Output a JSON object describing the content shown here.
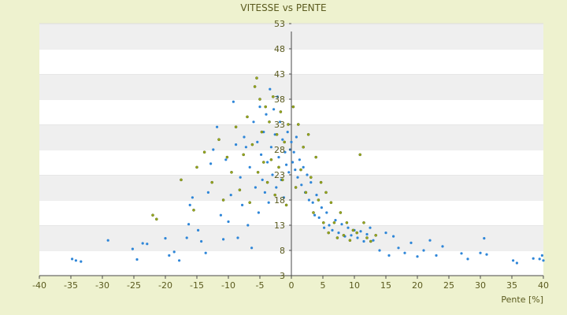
{
  "chart_data": {
    "type": "scatter",
    "title": "VITESSE vs PENTE",
    "xlabel": "Pente [%]",
    "ylabel": "",
    "xlim": [
      -40,
      40
    ],
    "ylim": [
      3,
      53
    ],
    "x_ticks": [
      -40,
      -35,
      -30,
      -25,
      -20,
      -15,
      -10,
      -5,
      0,
      5,
      10,
      15,
      20,
      25,
      30,
      35,
      40
    ],
    "y_ticks": [
      3,
      8,
      13,
      18,
      23,
      28,
      33,
      38,
      43,
      48,
      53
    ],
    "grid": "horizontal bands",
    "legend": "none",
    "series": [
      {
        "color": "#2e86d8",
        "points": [
          [
            -34.8,
            6.3
          ],
          [
            -34.2,
            6.0
          ],
          [
            -33.4,
            5.8
          ],
          [
            -29.1,
            10.0
          ],
          [
            -25.2,
            8.3
          ],
          [
            -24.5,
            6.2
          ],
          [
            -23.6,
            9.4
          ],
          [
            -22.9,
            9.3
          ],
          [
            -20.0,
            10.4
          ],
          [
            -19.4,
            7.0
          ],
          [
            -18.6,
            7.7
          ],
          [
            -17.8,
            6.0
          ],
          [
            -16.6,
            10.5
          ],
          [
            -16.3,
            13.2
          ],
          [
            -16.1,
            17.0
          ],
          [
            -15.7,
            18.5
          ],
          [
            -14.8,
            12.0
          ],
          [
            -14.3,
            9.8
          ],
          [
            -13.6,
            7.5
          ],
          [
            -13.2,
            19.5
          ],
          [
            -12.8,
            25.2
          ],
          [
            -12.4,
            28.0
          ],
          [
            -11.8,
            32.5
          ],
          [
            -11.2,
            15.0
          ],
          [
            -10.8,
            10.2
          ],
          [
            -10.4,
            26.0
          ],
          [
            -10.0,
            13.7
          ],
          [
            -9.6,
            19.0
          ],
          [
            -9.2,
            37.5
          ],
          [
            -8.8,
            29.0
          ],
          [
            -8.5,
            10.5
          ],
          [
            -8.1,
            22.5
          ],
          [
            -7.8,
            17.0
          ],
          [
            -7.5,
            30.5
          ],
          [
            -7.2,
            28.5
          ],
          [
            -6.9,
            13.0
          ],
          [
            -6.6,
            24.5
          ],
          [
            -6.3,
            8.5
          ],
          [
            -6.0,
            33.5
          ],
          [
            -5.7,
            20.5
          ],
          [
            -5.4,
            29.5
          ],
          [
            -5.2,
            15.5
          ],
          [
            -5.0,
            36.5
          ],
          [
            -4.8,
            27.0
          ],
          [
            -4.6,
            22.0
          ],
          [
            -4.4,
            31.5
          ],
          [
            -4.2,
            19.5
          ],
          [
            -4.0,
            35.0
          ],
          [
            -3.8,
            25.5
          ],
          [
            -3.6,
            17.5
          ],
          [
            -3.4,
            40.0
          ],
          [
            -3.2,
            28.5
          ],
          [
            -3.0,
            23.0
          ],
          [
            -2.8,
            36.0
          ],
          [
            -2.6,
            31.0
          ],
          [
            -2.4,
            20.5
          ],
          [
            -2.2,
            38.5
          ],
          [
            -2.0,
            26.5
          ],
          [
            -1.8,
            33.5
          ],
          [
            -1.6,
            22.0
          ],
          [
            -1.4,
            30.0
          ],
          [
            -1.2,
            18.5
          ],
          [
            -1.0,
            27.5
          ],
          [
            -0.8,
            25.0
          ],
          [
            -0.6,
            31.5
          ],
          [
            -0.4,
            23.5
          ],
          [
            -0.2,
            28.0
          ],
          [
            0.0,
            29.5
          ],
          [
            0.2,
            25.5
          ],
          [
            0.4,
            27.5
          ],
          [
            0.6,
            24.0
          ],
          [
            0.8,
            30.5
          ],
          [
            1.0,
            22.5
          ],
          [
            1.3,
            26.0
          ],
          [
            1.6,
            21.0
          ],
          [
            1.9,
            24.5
          ],
          [
            2.2,
            19.5
          ],
          [
            2.5,
            23.0
          ],
          [
            2.8,
            18.0
          ],
          [
            3.1,
            21.5
          ],
          [
            3.4,
            17.5
          ],
          [
            3.7,
            15.0
          ],
          [
            4.0,
            19.0
          ],
          [
            4.4,
            14.5
          ],
          [
            4.8,
            16.5
          ],
          [
            5.2,
            12.5
          ],
          [
            5.6,
            15.5
          ],
          [
            6.0,
            13.0
          ],
          [
            6.5,
            12.0
          ],
          [
            7.0,
            14.0
          ],
          [
            7.5,
            11.5
          ],
          [
            8.0,
            13.2
          ],
          [
            8.5,
            10.8
          ],
          [
            9.0,
            12.5
          ],
          [
            9.5,
            11.0
          ],
          [
            10.0,
            12.0
          ],
          [
            10.5,
            10.5
          ],
          [
            11.0,
            11.8
          ],
          [
            11.5,
            9.8
          ],
          [
            12.0,
            11.2
          ],
          [
            12.5,
            12.5
          ],
          [
            13.0,
            10.0
          ],
          [
            14.0,
            8.0
          ],
          [
            15.0,
            11.5
          ],
          [
            15.5,
            7.0
          ],
          [
            16.2,
            10.8
          ],
          [
            17.0,
            8.5
          ],
          [
            18.0,
            7.5
          ],
          [
            19.0,
            9.5
          ],
          [
            20.0,
            6.8
          ],
          [
            21.0,
            8.0
          ],
          [
            22.0,
            10.0
          ],
          [
            23.0,
            7.0
          ],
          [
            24.0,
            8.8
          ],
          [
            27.0,
            7.4
          ],
          [
            28.0,
            6.3
          ],
          [
            30.0,
            7.5
          ],
          [
            30.6,
            10.4
          ],
          [
            31.0,
            7.2
          ],
          [
            35.2,
            6.0
          ],
          [
            35.8,
            5.5
          ],
          [
            38.4,
            6.4
          ],
          [
            39.4,
            6.3
          ],
          [
            39.8,
            7.0
          ],
          [
            40.0,
            6.0
          ]
        ]
      },
      {
        "color": "#9aaa1c",
        "points": [
          [
            -22.0,
            15.0
          ],
          [
            -21.4,
            14.2
          ],
          [
            -17.5,
            22.0
          ],
          [
            -15.5,
            16.0
          ],
          [
            -15.0,
            24.5
          ],
          [
            -13.8,
            27.5
          ],
          [
            -12.6,
            21.5
          ],
          [
            -11.5,
            30.0
          ],
          [
            -10.8,
            18.0
          ],
          [
            -10.2,
            26.5
          ],
          [
            -9.5,
            23.5
          ],
          [
            -8.8,
            32.5
          ],
          [
            -8.2,
            20.0
          ],
          [
            -7.6,
            27.0
          ],
          [
            -7.0,
            34.5
          ],
          [
            -6.6,
            17.5
          ],
          [
            -6.2,
            29.0
          ],
          [
            -5.8,
            40.5
          ],
          [
            -5.5,
            42.2
          ],
          [
            -5.3,
            23.5
          ],
          [
            -5.0,
            38.0
          ],
          [
            -4.7,
            31.5
          ],
          [
            -4.4,
            25.5
          ],
          [
            -4.1,
            36.5
          ],
          [
            -3.8,
            21.5
          ],
          [
            -3.5,
            33.5
          ],
          [
            -3.2,
            26.0
          ],
          [
            -2.9,
            38.5
          ],
          [
            -2.6,
            19.0
          ],
          [
            -2.3,
            31.0
          ],
          [
            -2.0,
            24.5
          ],
          [
            -1.7,
            35.5
          ],
          [
            -1.4,
            22.0
          ],
          [
            -1.1,
            29.5
          ],
          [
            -0.8,
            17.0
          ],
          [
            -0.5,
            33.0
          ],
          [
            0.3,
            36.5
          ],
          [
            0.7,
            20.5
          ],
          [
            1.1,
            33.0
          ],
          [
            1.5,
            24.0
          ],
          [
            1.9,
            28.5
          ],
          [
            2.3,
            19.5
          ],
          [
            2.7,
            31.0
          ],
          [
            3.1,
            22.5
          ],
          [
            3.5,
            15.5
          ],
          [
            3.9,
            26.5
          ],
          [
            4.3,
            18.0
          ],
          [
            4.7,
            21.5
          ],
          [
            5.1,
            13.5
          ],
          [
            5.5,
            19.5
          ],
          [
            5.9,
            11.5
          ],
          [
            6.3,
            17.5
          ],
          [
            6.8,
            13.5
          ],
          [
            7.3,
            10.5
          ],
          [
            7.8,
            15.5
          ],
          [
            8.3,
            11.0
          ],
          [
            8.8,
            13.5
          ],
          [
            9.3,
            10.0
          ],
          [
            9.8,
            12.0
          ],
          [
            10.4,
            11.5
          ],
          [
            10.9,
            27.0
          ],
          [
            11.5,
            13.5
          ],
          [
            12.0,
            10.5
          ],
          [
            12.6,
            9.8
          ],
          [
            13.4,
            11.0
          ]
        ]
      }
    ]
  }
}
